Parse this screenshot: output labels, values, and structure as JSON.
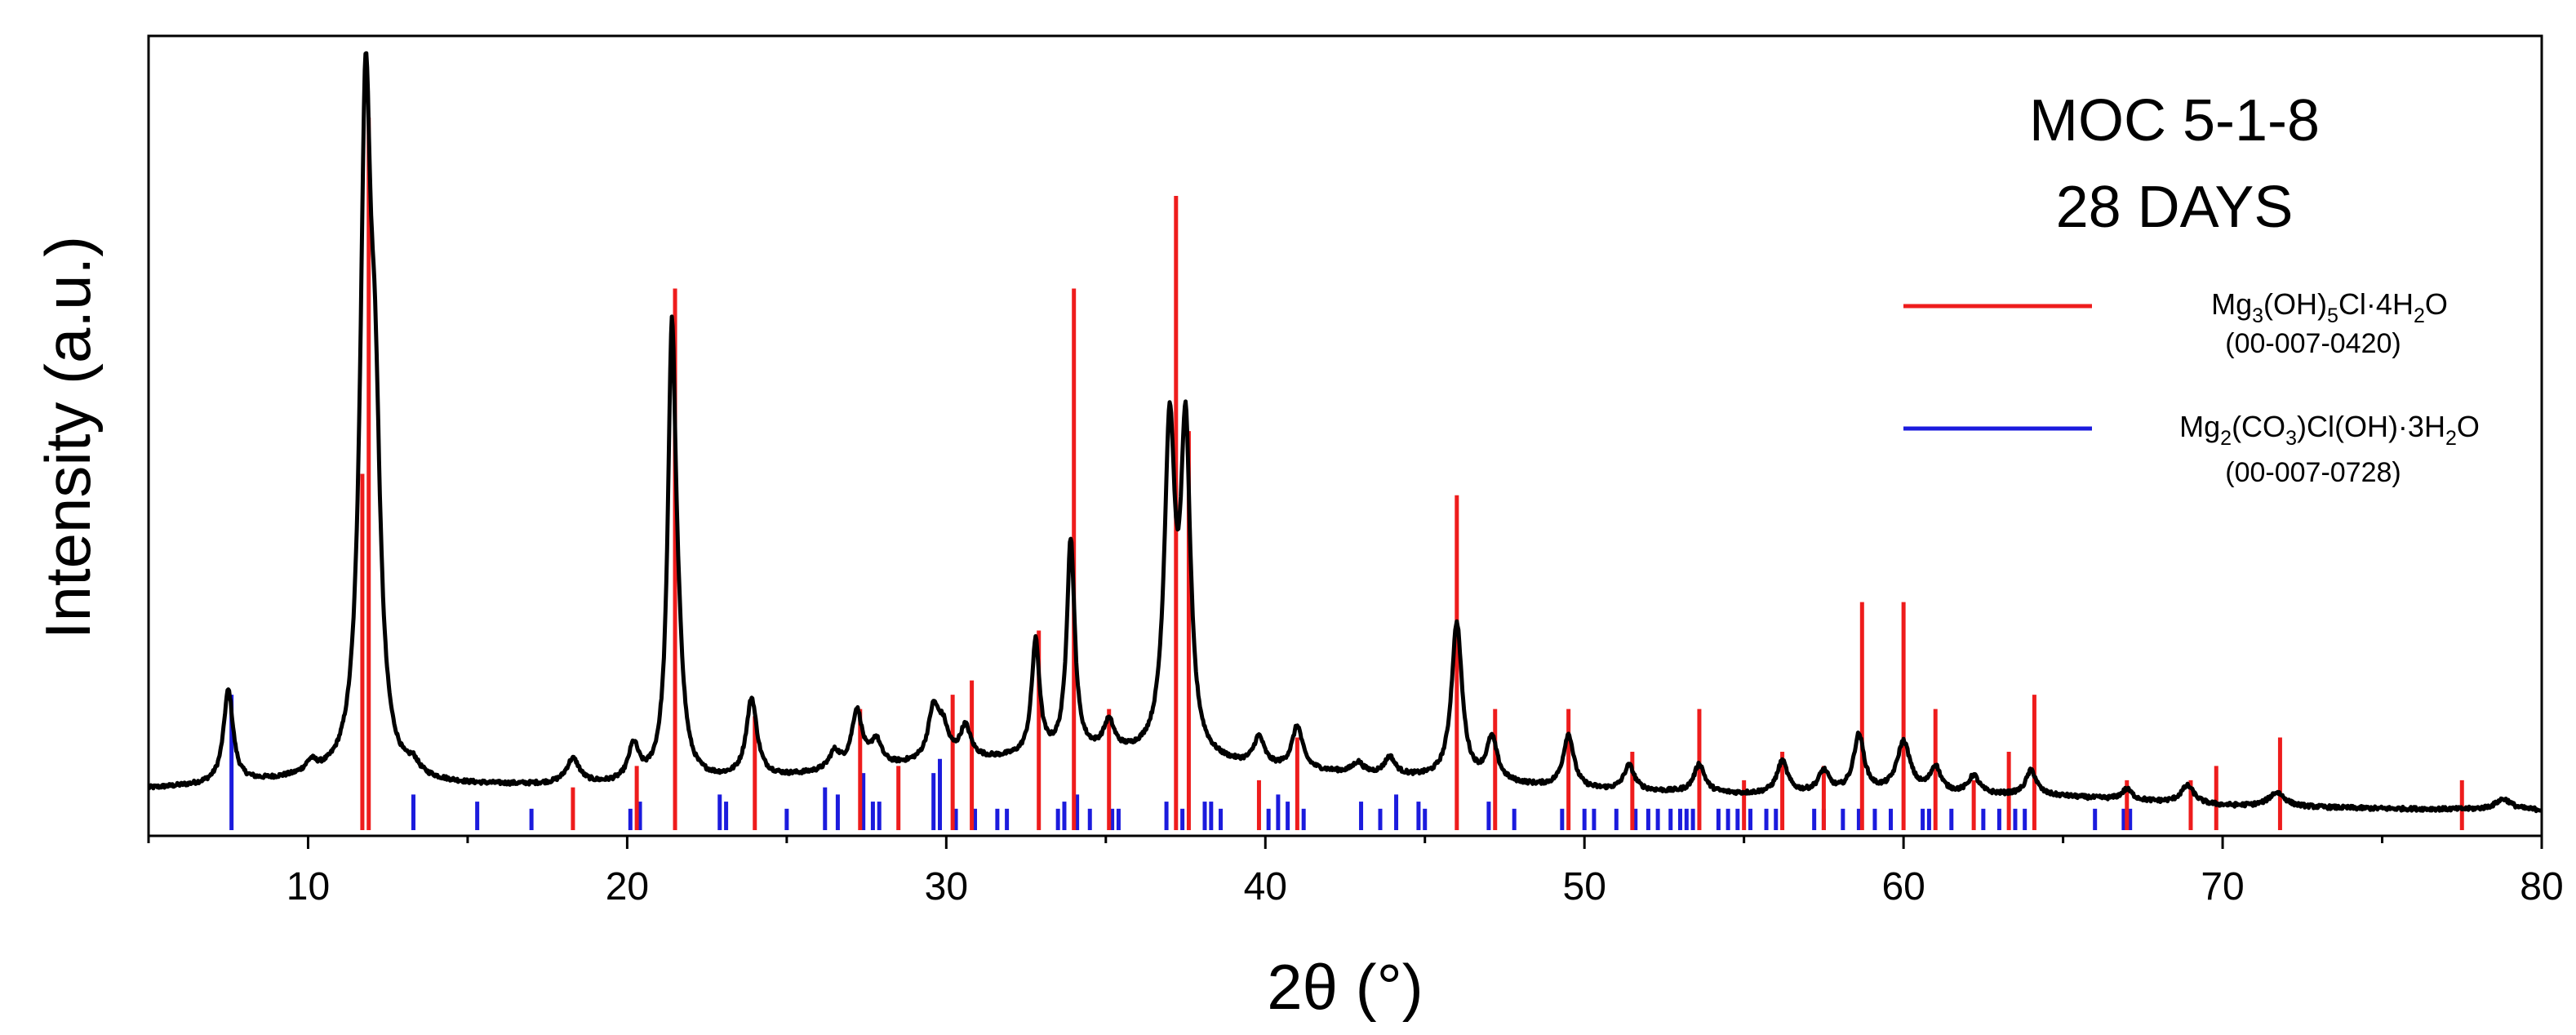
{
  "chart_data": {
    "type": "line",
    "xlabel": "2θ (°)",
    "ylabel": "Intensity (a.u.)",
    "xlim": [
      5,
      80
    ],
    "ylim": [
      0,
      100
    ],
    "x_ticks": [
      10,
      20,
      30,
      40,
      50,
      60,
      70,
      80
    ],
    "y_ticks_shown": false,
    "grid": false,
    "annotation": [
      "MOC 5-1-8",
      "28 DAYS"
    ],
    "legend_position": "right",
    "legend": [
      {
        "parts": [
          [
            "Mg",
            false
          ],
          [
            "3",
            true
          ],
          [
            "(OH)",
            false
          ],
          [
            "5",
            true
          ],
          [
            "Cl·4H",
            false
          ],
          [
            "2",
            true
          ],
          [
            "O",
            false
          ]
        ],
        "code": "(00-007-0420)",
        "color": "#ee1c1c"
      },
      {
        "parts": [
          [
            "Mg",
            false
          ],
          [
            "2",
            true
          ],
          [
            "(CO",
            false
          ],
          [
            "3",
            true
          ],
          [
            ")Cl(OH)·3H",
            false
          ],
          [
            "2",
            true
          ],
          [
            "O",
            false
          ]
        ],
        "code": "(00-007-0728)",
        "color": "#1b1bdd"
      }
    ],
    "series": [
      {
        "kind": "pattern",
        "color": "#000000",
        "baseline": [
          [
            5,
            5.8
          ],
          [
            10,
            7.0
          ],
          [
            15,
            6.2
          ],
          [
            20,
            6.2
          ],
          [
            25,
            7.4
          ],
          [
            30,
            9.5
          ],
          [
            35,
            10.5
          ],
          [
            40,
            8.5
          ],
          [
            45,
            7.2
          ],
          [
            50,
            5.6
          ],
          [
            55,
            5.0
          ],
          [
            60,
            5.2
          ],
          [
            65,
            4.7
          ],
          [
            70,
            3.4
          ],
          [
            75,
            3.0
          ],
          [
            80,
            2.8
          ]
        ],
        "peaks": [
          [
            7.5,
            13,
            0.18
          ],
          [
            10.1,
            1.5,
            0.2
          ],
          [
            11.8,
            90,
            0.2
          ],
          [
            12.1,
            40,
            0.2
          ],
          [
            13.3,
            1.5,
            0.2
          ],
          [
            18.3,
            3.5,
            0.25
          ],
          [
            20.2,
            5,
            0.2
          ],
          [
            21.4,
            60,
            0.15
          ],
          [
            21.6,
            10,
            0.2
          ],
          [
            23.9,
            11,
            0.2
          ],
          [
            26.5,
            2.5,
            0.2
          ],
          [
            27.2,
            8,
            0.2
          ],
          [
            27.8,
            3.5,
            0.2
          ],
          [
            29.6,
            7,
            0.2
          ],
          [
            29.9,
            4,
            0.2
          ],
          [
            30.6,
            4.5,
            0.2
          ],
          [
            32.8,
            16,
            0.15
          ],
          [
            33.9,
            30,
            0.15
          ],
          [
            35.1,
            4,
            0.2
          ],
          [
            37.0,
            45,
            0.2
          ],
          [
            37.5,
            44,
            0.18
          ],
          [
            39.8,
            4,
            0.2
          ],
          [
            41.0,
            6,
            0.2
          ],
          [
            42.9,
            1.5,
            0.2
          ],
          [
            43.9,
            2.5,
            0.2
          ],
          [
            46.0,
            22,
            0.2
          ],
          [
            47.1,
            6,
            0.2
          ],
          [
            49.5,
            7.5,
            0.2
          ],
          [
            51.4,
            3.5,
            0.2
          ],
          [
            53.6,
            4,
            0.2
          ],
          [
            56.2,
            4.5,
            0.2
          ],
          [
            57.5,
            3,
            0.2
          ],
          [
            58.6,
            8,
            0.2
          ],
          [
            60.0,
            7,
            0.25
          ],
          [
            61.0,
            3.5,
            0.2
          ],
          [
            62.2,
            2.5,
            0.2
          ],
          [
            64.0,
            3.5,
            0.2
          ],
          [
            67.0,
            1.5,
            0.2
          ],
          [
            68.9,
            2.5,
            0.25
          ],
          [
            71.7,
            2,
            0.3
          ],
          [
            78.8,
            1.5,
            0.3
          ]
        ]
      },
      {
        "name": "Mg3(OH)5Cl·4H2O",
        "kind": "reference",
        "color": "#ee1c1c",
        "sticks": [
          [
            11.7,
            50
          ],
          [
            11.9,
            100
          ],
          [
            18.3,
            6
          ],
          [
            20.3,
            9
          ],
          [
            21.5,
            76
          ],
          [
            24.0,
            16
          ],
          [
            27.3,
            17
          ],
          [
            28.5,
            9
          ],
          [
            30.2,
            19
          ],
          [
            30.8,
            21
          ],
          [
            32.9,
            28
          ],
          [
            34.0,
            76
          ],
          [
            35.1,
            17
          ],
          [
            37.2,
            89
          ],
          [
            37.6,
            56
          ],
          [
            39.8,
            7
          ],
          [
            41.0,
            13
          ],
          [
            46.0,
            47
          ],
          [
            47.2,
            17
          ],
          [
            49.5,
            17
          ],
          [
            51.5,
            11
          ],
          [
            53.6,
            17
          ],
          [
            55.0,
            7
          ],
          [
            56.2,
            11
          ],
          [
            57.5,
            9
          ],
          [
            58.7,
            32
          ],
          [
            60.0,
            32
          ],
          [
            61.0,
            17
          ],
          [
            62.2,
            7
          ],
          [
            63.3,
            11
          ],
          [
            64.1,
            19
          ],
          [
            67.0,
            7
          ],
          [
            69.0,
            7
          ],
          [
            69.8,
            9
          ],
          [
            71.8,
            13
          ],
          [
            77.5,
            7
          ]
        ]
      },
      {
        "name": "Mg2(CO3)Cl(OH)·3H2O",
        "kind": "reference",
        "color": "#1b1bdd",
        "sticks": [
          [
            7.6,
            19
          ],
          [
            13.3,
            5
          ],
          [
            15.3,
            4
          ],
          [
            17.0,
            3
          ],
          [
            20.1,
            3
          ],
          [
            20.4,
            4
          ],
          [
            22.9,
            5
          ],
          [
            23.1,
            4
          ],
          [
            25.0,
            3
          ],
          [
            26.2,
            6
          ],
          [
            26.6,
            5
          ],
          [
            27.4,
            8
          ],
          [
            27.7,
            4
          ],
          [
            27.9,
            4
          ],
          [
            29.6,
            8
          ],
          [
            29.8,
            10
          ],
          [
            30.3,
            3
          ],
          [
            30.9,
            3
          ],
          [
            31.6,
            3
          ],
          [
            31.9,
            3
          ],
          [
            33.5,
            3
          ],
          [
            33.7,
            4
          ],
          [
            34.1,
            5
          ],
          [
            34.5,
            3
          ],
          [
            35.2,
            3
          ],
          [
            35.4,
            3
          ],
          [
            36.9,
            4
          ],
          [
            37.4,
            3
          ],
          [
            38.1,
            4
          ],
          [
            38.3,
            4
          ],
          [
            38.6,
            3
          ],
          [
            40.1,
            3
          ],
          [
            40.4,
            5
          ],
          [
            40.7,
            4
          ],
          [
            41.2,
            3
          ],
          [
            43.0,
            4
          ],
          [
            43.6,
            3
          ],
          [
            44.1,
            5
          ],
          [
            44.8,
            4
          ],
          [
            45.0,
            3
          ],
          [
            47.0,
            4
          ],
          [
            47.8,
            3
          ],
          [
            49.3,
            3
          ],
          [
            50.0,
            3
          ],
          [
            50.3,
            3
          ],
          [
            51.0,
            3
          ],
          [
            51.6,
            3
          ],
          [
            52.0,
            3
          ],
          [
            52.3,
            3
          ],
          [
            52.7,
            3
          ],
          [
            53.0,
            3
          ],
          [
            53.2,
            3
          ],
          [
            53.4,
            3
          ],
          [
            54.2,
            3
          ],
          [
            54.5,
            3
          ],
          [
            54.8,
            3
          ],
          [
            55.2,
            3
          ],
          [
            55.7,
            3
          ],
          [
            56.0,
            3
          ],
          [
            57.2,
            3
          ],
          [
            57.5,
            3
          ],
          [
            58.1,
            3
          ],
          [
            58.6,
            3
          ],
          [
            59.1,
            3
          ],
          [
            59.6,
            3
          ],
          [
            60.6,
            3
          ],
          [
            60.8,
            3
          ],
          [
            61.5,
            3
          ],
          [
            62.5,
            3
          ],
          [
            63.0,
            3
          ],
          [
            63.5,
            3
          ],
          [
            63.8,
            3
          ],
          [
            66.0,
            3
          ],
          [
            66.9,
            3
          ],
          [
            67.1,
            3
          ]
        ]
      }
    ]
  }
}
